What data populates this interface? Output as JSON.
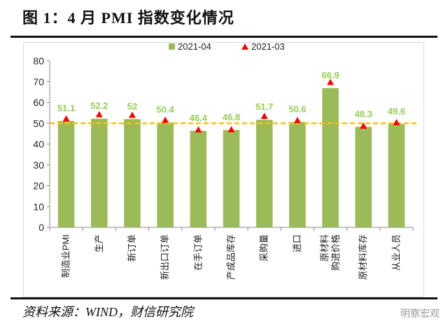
{
  "title": "图 1：4 月 PMI 指数变化情况",
  "source": "资料来源：WIND，财信研究院",
  "watermark": "明察宏观",
  "chart_data": {
    "type": "bar",
    "title": "图 1：4 月 PMI 指数变化情况",
    "categories": [
      "制造业PMI",
      "生产",
      "新订单",
      "新出口订单",
      "在手订单",
      "产成品库存",
      "采购量",
      "进口",
      "原材料购进价格",
      "原材料库存",
      "从业人员"
    ],
    "category_lines": [
      [
        "制造业PMI"
      ],
      [
        "生产"
      ],
      [
        "新订单"
      ],
      [
        "新出口订单"
      ],
      [
        "在手订单"
      ],
      [
        "产成品库存"
      ],
      [
        "采购量"
      ],
      [
        "进口"
      ],
      [
        "原材料",
        "购进价格"
      ],
      [
        "原材料库存"
      ],
      [
        "从业人员"
      ]
    ],
    "series": [
      {
        "name": "2021-04",
        "type": "bar",
        "color": "#9bbb59",
        "values": [
          51.1,
          52.2,
          52,
          50.4,
          46.4,
          46.8,
          51.7,
          50.6,
          66.9,
          48.3,
          49.6
        ],
        "labels": [
          "51.1",
          "52.2",
          "52",
          "50.4",
          "46.4",
          "46.8",
          "51.7",
          "50.6",
          "66.9",
          "48.3",
          "49.6"
        ]
      },
      {
        "name": "2021-03",
        "type": "marker-triangle",
        "color": "#ff0000",
        "values": [
          51.9,
          53.9,
          53.6,
          51.2,
          46.6,
          46.7,
          53.1,
          51.1,
          69.4,
          48.4,
          50.1
        ]
      }
    ],
    "reference_line": {
      "value": 50,
      "color": "#ffc000",
      "style": "dashed"
    },
    "ylim": [
      0,
      80
    ],
    "yticks": [
      0,
      10,
      20,
      30,
      40,
      50,
      60,
      70,
      80
    ],
    "legend": "top-center",
    "grid": false,
    "label_color": "#92d050"
  }
}
